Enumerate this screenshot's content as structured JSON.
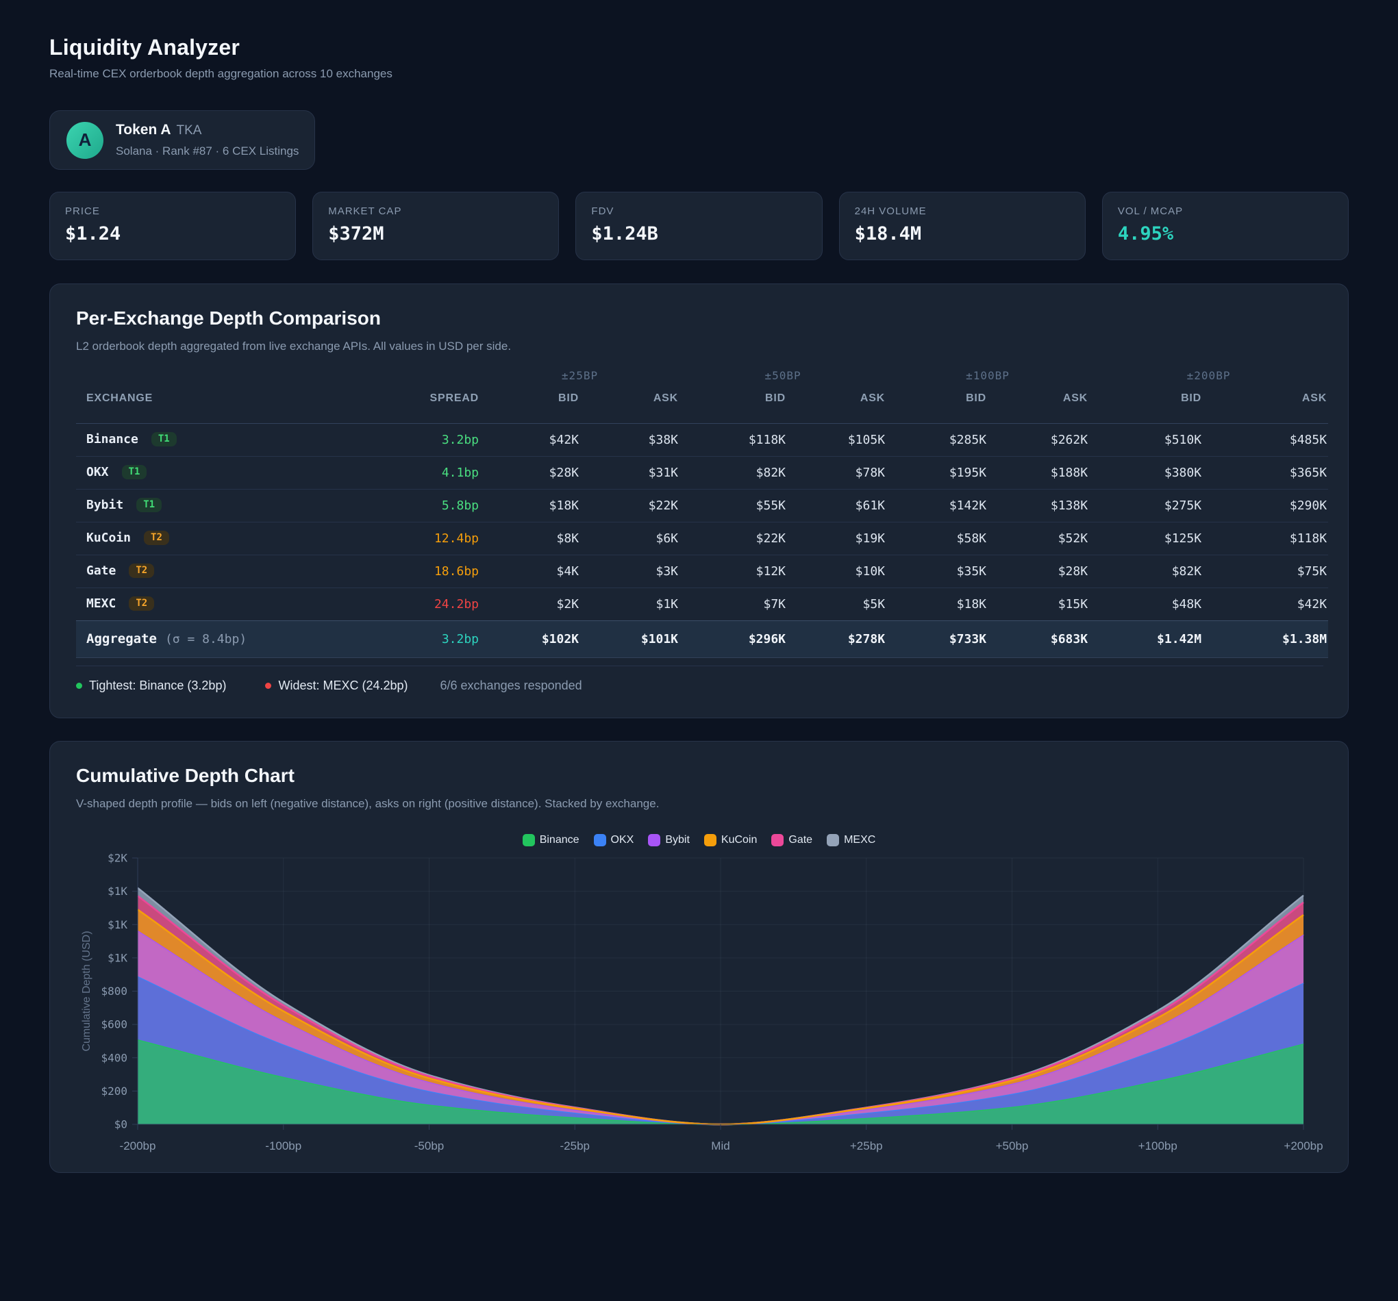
{
  "header": {
    "title": "Liquidity Analyzer",
    "subtitle": "Real-time CEX orderbook depth aggregation across 10 exchanges"
  },
  "token": {
    "avatar_letter": "A",
    "name": "Token A",
    "symbol": "TKA",
    "meta": "Solana · Rank #87 · 6 CEX Listings"
  },
  "stats": [
    {
      "id": "price",
      "label": "PRICE",
      "value": "$1.24"
    },
    {
      "id": "market-cap",
      "label": "MARKET CAP",
      "value": "$372M"
    },
    {
      "id": "fdv",
      "label": "FDV",
      "value": "$1.24B"
    },
    {
      "id": "volume-24h",
      "label": "24H VOLUME",
      "value": "$18.4M"
    },
    {
      "id": "vol-mcap",
      "label": "VOL / MCAP",
      "value": "4.95%",
      "accent": "#2dd4bf"
    }
  ],
  "depth_table": {
    "title": "Per-Exchange Depth Comparison",
    "subtitle": "L2 orderbook depth aggregated from live exchange APIs. All values in USD per side.",
    "group_headers": [
      "±25BP",
      "±50BP",
      "±100BP",
      "±200BP"
    ],
    "col_exchange": "EXCHANGE",
    "col_spread": "SPREAD",
    "col_bid": "BID",
    "col_ask": "ASK",
    "rows": [
      {
        "exchange": "Binance",
        "tier": "T1",
        "spread": "3.2bp",
        "spread_color": "#4ade80",
        "values": [
          "$42K",
          "$38K",
          "$118K",
          "$105K",
          "$285K",
          "$262K",
          "$510K",
          "$485K"
        ]
      },
      {
        "exchange": "OKX",
        "tier": "T1",
        "spread": "4.1bp",
        "spread_color": "#4ade80",
        "values": [
          "$28K",
          "$31K",
          "$82K",
          "$78K",
          "$195K",
          "$188K",
          "$380K",
          "$365K"
        ]
      },
      {
        "exchange": "Bybit",
        "tier": "T1",
        "spread": "5.8bp",
        "spread_color": "#4ade80",
        "values": [
          "$18K",
          "$22K",
          "$55K",
          "$61K",
          "$142K",
          "$138K",
          "$275K",
          "$290K"
        ]
      },
      {
        "exchange": "KuCoin",
        "tier": "T2",
        "spread": "12.4bp",
        "spread_color": "#f59e0b",
        "values": [
          "$8K",
          "$6K",
          "$22K",
          "$19K",
          "$58K",
          "$52K",
          "$125K",
          "$118K"
        ]
      },
      {
        "exchange": "Gate",
        "tier": "T2",
        "spread": "18.6bp",
        "spread_color": "#f59e0b",
        "values": [
          "$4K",
          "$3K",
          "$12K",
          "$10K",
          "$35K",
          "$28K",
          "$82K",
          "$75K"
        ]
      },
      {
        "exchange": "MEXC",
        "tier": "T2",
        "spread": "24.2bp",
        "spread_color": "#ef4444",
        "values": [
          "$2K",
          "$1K",
          "$7K",
          "$5K",
          "$18K",
          "$15K",
          "$48K",
          "$42K"
        ]
      }
    ],
    "aggregate": {
      "label": "Aggregate",
      "sigma": "(σ = 8.4bp)",
      "spread": "3.2bp",
      "spread_color": "#2dd4bf",
      "values": [
        "$102K",
        "$101K",
        "$296K",
        "$278K",
        "$733K",
        "$683K",
        "$1.42M",
        "$1.38M"
      ]
    },
    "footer": {
      "tightest": "Tightest: Binance (3.2bp)",
      "widest": "Widest: MEXC (24.2bp)",
      "responded": "6/6 exchanges responded"
    }
  },
  "chart": {
    "title": "Cumulative Depth Chart",
    "subtitle": "V-shaped depth profile — bids on left (negative distance), asks on right (positive distance). Stacked by exchange.",
    "ylabel": "Cumulative Depth (USD)"
  },
  "chart_data": {
    "type": "area",
    "stacked": true,
    "smooth": true,
    "title": "Cumulative Depth Chart",
    "xlabel": "",
    "ylabel": "Cumulative Depth (USD)",
    "categories": [
      "-200bp",
      "-100bp",
      "-50bp",
      "-25bp",
      "Mid",
      "+25bp",
      "+50bp",
      "+100bp",
      "+200bp"
    ],
    "ylim": [
      0,
      1600
    ],
    "ytick_step": 200,
    "ytick_labels": [
      "$0",
      "$200",
      "$400",
      "$600",
      "$800",
      "$1K",
      "$1K",
      "$1K",
      "$2K"
    ],
    "grid": true,
    "legend_position": "top",
    "unit": "USD (thousands), per-side depth by distance from mid",
    "series": [
      {
        "name": "Binance",
        "color": "#22c55e",
        "fill": "#34ad7c",
        "values": [
          510,
          285,
          118,
          42,
          0,
          38,
          105,
          262,
          485
        ]
      },
      {
        "name": "OKX",
        "color": "#3b82f6",
        "fill": "#5d6fd8",
        "values": [
          380,
          195,
          82,
          28,
          0,
          31,
          78,
          188,
          365
        ]
      },
      {
        "name": "Bybit",
        "color": "#a855f7",
        "fill": "#c268c4",
        "values": [
          275,
          142,
          55,
          18,
          0,
          22,
          61,
          138,
          290
        ]
      },
      {
        "name": "KuCoin",
        "color": "#f59e0b",
        "fill": "#e0882a",
        "values": [
          125,
          58,
          22,
          8,
          0,
          6,
          19,
          52,
          118
        ]
      },
      {
        "name": "Gate",
        "color": "#ec4899",
        "fill": "#c94a7e",
        "values": [
          82,
          35,
          12,
          4,
          0,
          3,
          10,
          28,
          75
        ]
      },
      {
        "name": "MEXC",
        "color": "#94a3b8",
        "fill": "#7e8da2",
        "values": [
          48,
          18,
          7,
          2,
          0,
          1,
          5,
          15,
          42
        ]
      }
    ]
  }
}
